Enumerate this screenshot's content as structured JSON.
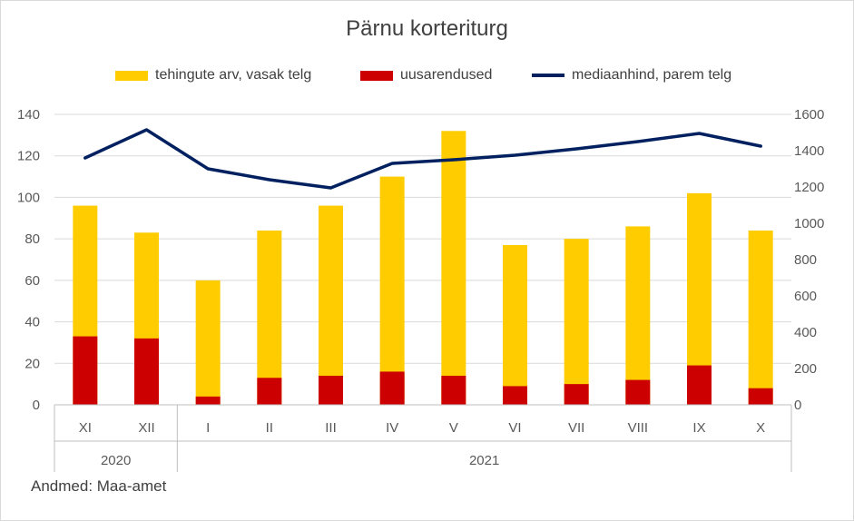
{
  "chart_data": {
    "type": "bar",
    "title": "Pärnu korteriturg",
    "categories": [
      "XI",
      "XII",
      "I",
      "II",
      "III",
      "IV",
      "V",
      "VI",
      "VII",
      "VIII",
      "IX",
      "X"
    ],
    "year_groups": [
      {
        "label": "2020",
        "count": 2
      },
      {
        "label": "2021",
        "count": 10
      }
    ],
    "series": [
      {
        "name": "tehingute arv, vasak telg",
        "type": "stacked-bar-total",
        "color": "#ffcc00",
        "values": [
          96,
          83,
          60,
          84,
          96,
          110,
          132,
          77,
          80,
          86,
          102,
          84
        ]
      },
      {
        "name": "uusarendused",
        "type": "stacked-bar-part",
        "color": "#cc0000",
        "values": [
          33,
          32,
          4,
          13,
          14,
          16,
          14,
          9,
          10,
          12,
          19,
          8
        ]
      },
      {
        "name": "mediaanhind, parem telg",
        "type": "line",
        "axis": "right",
        "color": "#002060",
        "values": [
          1360,
          1515,
          1300,
          1240,
          1195,
          1330,
          1350,
          1375,
          1410,
          1450,
          1495,
          1425
        ]
      }
    ],
    "y_left": {
      "min": 0,
      "max": 140,
      "ticks": [
        0,
        20,
        40,
        60,
        80,
        100,
        120,
        140
      ]
    },
    "y_right": {
      "min": 0,
      "max": 1600,
      "ticks": [
        0,
        200,
        400,
        600,
        800,
        1000,
        1200,
        1400,
        1600
      ]
    },
    "grid": true,
    "legend_position": "top"
  },
  "source_note": "Andmed: Maa-amet"
}
